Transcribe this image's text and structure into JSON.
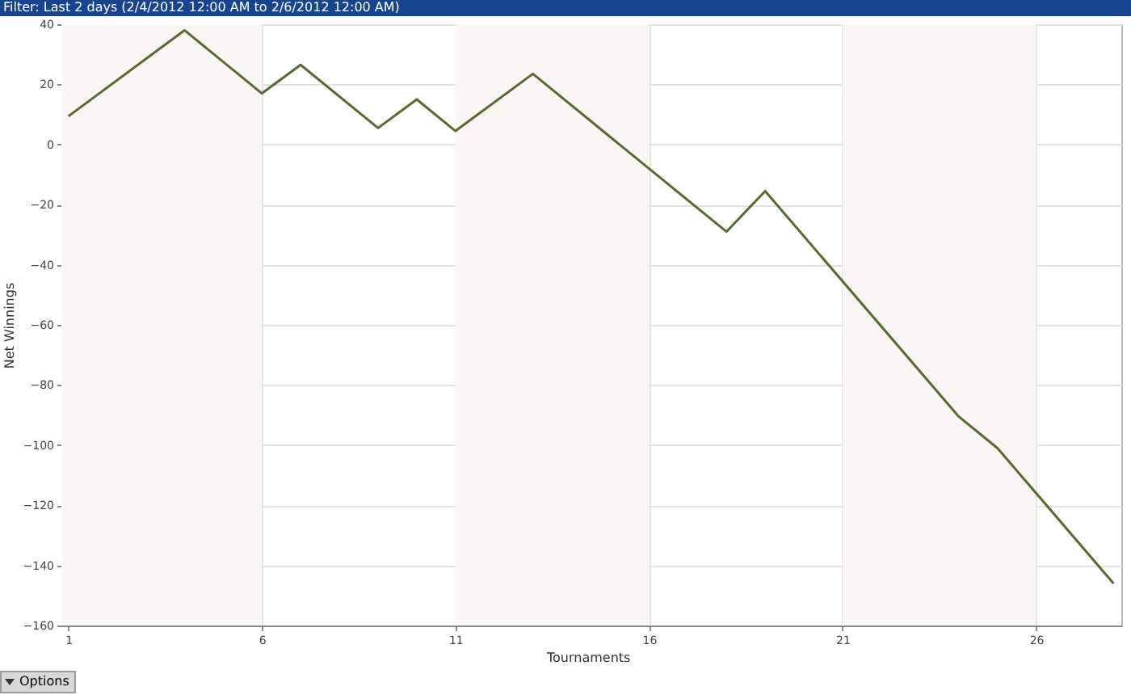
{
  "chart_data": {
    "type": "line",
    "title": "Filter: Last 2 days (2/4/2012 12:00 AM to 2/6/2012 12:00 AM)",
    "xlabel": "Tournaments",
    "ylabel": "Net Winnings",
    "x": [
      1,
      4,
      6,
      7,
      9,
      10,
      11,
      13,
      18,
      19,
      24,
      25,
      28
    ],
    "series": [
      {
        "color": "#566b30",
        "values": [
          9.4,
          38,
          17,
          26.5,
          5.5,
          15,
          4.5,
          23.5,
          -29,
          -15.5,
          -90.5,
          -101,
          -146
        ]
      }
    ],
    "xlim": [
      0.82,
      28.2
    ],
    "xticks": [
      1,
      6,
      11,
      16,
      21,
      26
    ],
    "ylim": [
      -160,
      40
    ],
    "yticks": [
      -160,
      -140,
      -120,
      -100,
      -80,
      -60,
      -40,
      -20,
      0,
      20,
      40
    ],
    "grid": true,
    "marker": "none",
    "line_style": "solid",
    "bands": [
      {
        "axis": "x",
        "from": 0.82,
        "to": 6,
        "color": "#fbf5f5"
      },
      {
        "axis": "x",
        "from": 11,
        "to": 16,
        "color": "#fbf5f5"
      },
      {
        "axis": "x",
        "from": 21,
        "to": 26,
        "color": "#fbf5f5"
      }
    ],
    "annotations": [
      "Options"
    ]
  }
}
